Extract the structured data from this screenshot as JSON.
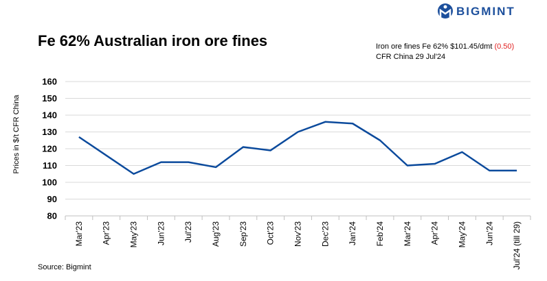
{
  "brand": "BIGMINT",
  "chart_data": {
    "type": "line",
    "title": "Fe 62% Australian iron ore fines",
    "annotation": {
      "line1": "Iron ore fines Fe 62% $101.45/dmt",
      "change": "(0.50)",
      "line2": "CFR China  29 Jul'24"
    },
    "y_label": "Prices in $/t CFR China",
    "source": "Source: Bigmint",
    "categories": [
      "Mar'23",
      "Apr'23",
      "May'23",
      "Jun'23",
      "Jul'23",
      "Aug'23",
      "Sep'23",
      "Oct'23",
      "Nov'23",
      "Dec'23",
      "Jan'24",
      "Feb'24",
      "Mar'24",
      "Apr'24",
      "May'24",
      "Jun'24",
      "Jul'24 (till 29)"
    ],
    "series": [
      {
        "name": "Fe 62% Australian iron ore fines",
        "color": "#0b4a9c",
        "values": [
          127,
          116,
          105,
          112,
          112,
          109,
          121,
          119,
          130,
          136,
          135,
          125,
          110,
          111,
          118,
          107,
          107
        ]
      }
    ],
    "ylim": [
      80,
      160
    ],
    "yticks": [
      80,
      90,
      100,
      110,
      120,
      130,
      140,
      150,
      160
    ],
    "grid": true
  }
}
